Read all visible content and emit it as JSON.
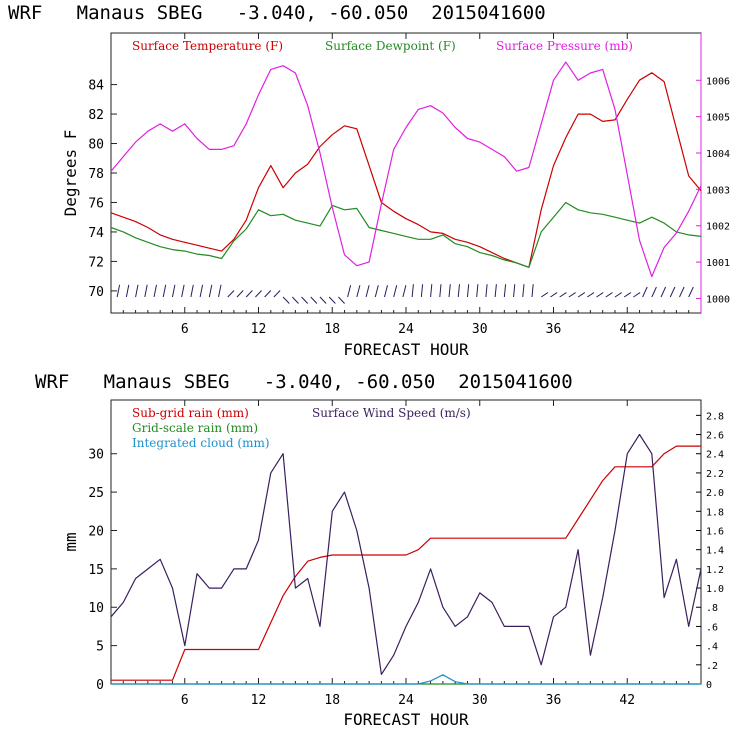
{
  "chart_data": [
    {
      "type": "line",
      "title": "WRF   Manaus SBEG   -3.040, -60.050  2015041600",
      "xlabel": "FORECAST HOUR",
      "ylabel": "Degrees F",
      "xlim": [
        0,
        48
      ],
      "ylim": [
        68.5,
        87.5
      ],
      "y2lim": [
        999.6,
        1007.3
      ],
      "x_ticks": [
        6,
        12,
        18,
        24,
        30,
        36,
        42
      ],
      "y_ticks": [
        70,
        72,
        74,
        76,
        78,
        80,
        82,
        84
      ],
      "y2_ticks": [
        1000,
        1001,
        1002,
        1003,
        1004,
        1005,
        1006
      ],
      "legend": [
        "Surface Temperature (F)",
        "Surface Dewpoint (F)",
        "Surface Pressure (mb)"
      ],
      "colors": {
        "temperature": "#cc0000",
        "dewpoint": "#228b22",
        "pressure": "#e020e0",
        "wind_barbs": "#2e1a5e"
      },
      "x": [
        0,
        1,
        2,
        3,
        4,
        5,
        6,
        7,
        8,
        9,
        10,
        11,
        12,
        13,
        14,
        15,
        16,
        17,
        18,
        19,
        20,
        21,
        22,
        23,
        24,
        25,
        26,
        27,
        28,
        29,
        30,
        31,
        32,
        33,
        34,
        35,
        36,
        37,
        38,
        39,
        40,
        41,
        42,
        43,
        44,
        45,
        46,
        47,
        48
      ],
      "series": [
        {
          "name": "Surface Temperature (F)",
          "axis": "left",
          "values": [
            75.3,
            75.0,
            74.7,
            74.3,
            73.8,
            73.5,
            73.3,
            73.1,
            72.9,
            72.7,
            73.5,
            74.8,
            77.0,
            78.5,
            77.0,
            78.0,
            78.6,
            79.8,
            80.6,
            81.2,
            81.0,
            78.5,
            76.0,
            75.4,
            74.9,
            74.5,
            74.0,
            73.9,
            73.5,
            73.3,
            73.0,
            72.6,
            72.2,
            71.9,
            71.6,
            75.5,
            78.5,
            80.4,
            82.0,
            82.0,
            81.5,
            81.6,
            83.0,
            84.3,
            84.8,
            84.2,
            81.0,
            77.8,
            76.8
          ]
        },
        {
          "name": "Surface Dewpoint (F)",
          "axis": "left",
          "values": [
            74.3,
            74.0,
            73.6,
            73.3,
            73.0,
            72.8,
            72.7,
            72.5,
            72.4,
            72.2,
            73.4,
            74.2,
            75.5,
            75.1,
            75.2,
            74.8,
            74.6,
            74.4,
            75.8,
            75.5,
            75.6,
            74.3,
            74.1,
            73.9,
            73.7,
            73.5,
            73.5,
            73.8,
            73.2,
            73.0,
            72.6,
            72.4,
            72.1,
            71.9,
            71.6,
            74.0,
            75.0,
            76.0,
            75.5,
            75.3,
            75.2,
            75.0,
            74.8,
            74.6,
            75.0,
            74.6,
            74.0,
            73.8,
            73.7
          ]
        },
        {
          "name": "Surface Pressure (mb)",
          "axis": "right",
          "values": [
            1003.5,
            1003.9,
            1004.3,
            1004.6,
            1004.8,
            1004.6,
            1004.8,
            1004.4,
            1004.1,
            1004.1,
            1004.2,
            1004.8,
            1005.6,
            1006.3,
            1006.4,
            1006.2,
            1005.3,
            1004.0,
            1002.5,
            1001.2,
            1000.9,
            1001.0,
            1002.6,
            1004.1,
            1004.7,
            1005.2,
            1005.3,
            1005.1,
            1004.7,
            1004.4,
            1004.3,
            1004.1,
            1003.9,
            1003.5,
            1003.6,
            1004.8,
            1006.0,
            1006.5,
            1006.0,
            1006.2,
            1006.3,
            1005.2,
            1003.4,
            1001.6,
            1000.6,
            1001.4,
            1001.8,
            1002.4,
            1003.1
          ]
        }
      ]
    },
    {
      "type": "line",
      "title": "WRF   Manaus SBEG   -3.040, -60.050  2015041600",
      "xlabel": "FORECAST HOUR",
      "ylabel": "mm",
      "xlim": [
        0,
        48
      ],
      "ylim": [
        0,
        37
      ],
      "y2lim": [
        0,
        2.96
      ],
      "x_ticks": [
        6,
        12,
        18,
        24,
        30,
        36,
        42
      ],
      "y_ticks": [
        0,
        5,
        10,
        15,
        20,
        25,
        30
      ],
      "y2_ticks": [
        "0",
        ".2",
        ".4",
        ".6",
        ".8",
        "1.0",
        "1.2",
        "1.4",
        "1.6",
        "1.8",
        "2.0",
        "2.2",
        "2.4",
        "2.6",
        "2.8"
      ],
      "legend": [
        "Sub-grid rain (mm)",
        "Surface Wind Speed (m/s)",
        "Grid-scale rain (mm)",
        "Integrated cloud (mm)"
      ],
      "colors": {
        "subgrid": "#cc0000",
        "wind": "#3a1f5e",
        "gridscale": "#228b22",
        "cloud": "#1e90cc"
      },
      "x": [
        0,
        1,
        2,
        3,
        4,
        5,
        6,
        7,
        8,
        9,
        10,
        11,
        12,
        13,
        14,
        15,
        16,
        17,
        18,
        19,
        20,
        21,
        22,
        23,
        24,
        25,
        26,
        27,
        28,
        29,
        30,
        31,
        32,
        33,
        34,
        35,
        36,
        37,
        38,
        39,
        40,
        41,
        42,
        43,
        44,
        45,
        46,
        47,
        48
      ],
      "series": [
        {
          "name": "Sub-grid rain (mm)",
          "axis": "left",
          "values": [
            0.5,
            0.5,
            0.5,
            0.5,
            0.5,
            0.5,
            4.5,
            4.5,
            4.5,
            4.5,
            4.5,
            4.5,
            4.5,
            8.0,
            11.5,
            14.0,
            16.0,
            16.5,
            16.8,
            16.8,
            16.8,
            16.8,
            16.8,
            16.8,
            16.8,
            17.5,
            19.0,
            19.0,
            19.0,
            19.0,
            19.0,
            19.0,
            19.0,
            19.0,
            19.0,
            19.0,
            19.0,
            19.0,
            21.5,
            24.0,
            26.5,
            28.3,
            28.3,
            28.3,
            28.3,
            30.0,
            31.0,
            31.0,
            31.0
          ]
        },
        {
          "name": "Surface Wind Speed (m/s)",
          "axis": "right",
          "values": [
            0.7,
            0.85,
            1.1,
            1.2,
            1.3,
            1.0,
            0.4,
            1.15,
            1.0,
            1.0,
            1.2,
            1.2,
            1.5,
            2.2,
            2.4,
            1.0,
            1.1,
            0.6,
            1.8,
            2.0,
            1.6,
            1.0,
            0.1,
            0.3,
            0.6,
            0.85,
            1.2,
            0.8,
            0.6,
            0.7,
            0.95,
            0.85,
            0.6,
            0.6,
            0.6,
            0.2,
            0.7,
            0.8,
            1.4,
            0.3,
            0.9,
            1.6,
            2.4,
            2.6,
            2.4,
            0.9,
            1.3,
            0.6,
            1.2
          ]
        },
        {
          "name": "Grid-scale rain (mm)",
          "axis": "left",
          "values": [
            0,
            0,
            0,
            0,
            0,
            0,
            0,
            0,
            0,
            0,
            0,
            0,
            0,
            0,
            0,
            0,
            0,
            0,
            0,
            0,
            0,
            0,
            0,
            0,
            0,
            0,
            0,
            0,
            0,
            0,
            0,
            0,
            0,
            0,
            0,
            0,
            0,
            0,
            0,
            0,
            0,
            0,
            0,
            0,
            0,
            0,
            0,
            0,
            0
          ]
        },
        {
          "name": "Integrated cloud (mm)",
          "axis": "left",
          "values": [
            0,
            0,
            0,
            0,
            0,
            0,
            0,
            0,
            0,
            0,
            0,
            0,
            0,
            0,
            0,
            0,
            0,
            0,
            0,
            0,
            0,
            0,
            0,
            0,
            0,
            0,
            0.4,
            1.2,
            0.3,
            0,
            0,
            0,
            0,
            0,
            0,
            0,
            0,
            0,
            0,
            0,
            0,
            0,
            0,
            0,
            0,
            0,
            0,
            0,
            0
          ]
        }
      ]
    }
  ]
}
